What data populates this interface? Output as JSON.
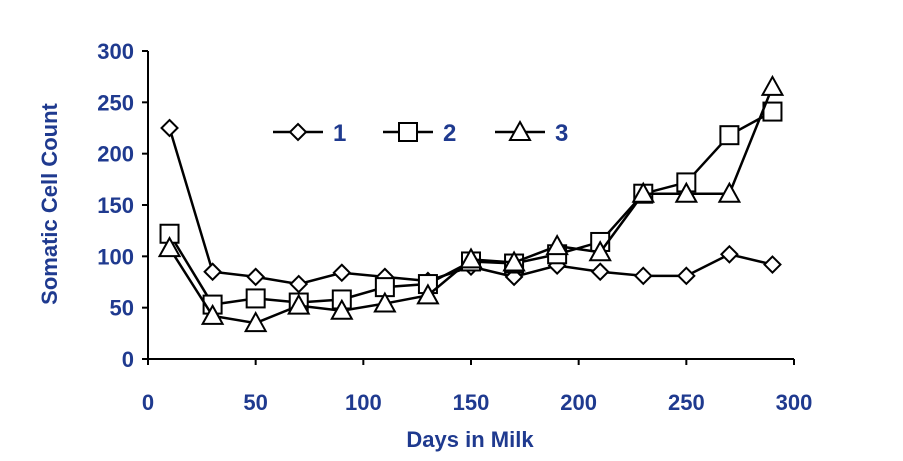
{
  "chart_data": {
    "type": "line",
    "title": "",
    "xlabel": "Days in Milk",
    "ylabel": "Somatic Cell Count",
    "xlim": [
      0,
      300
    ],
    "ylim": [
      0,
      300
    ],
    "xticks": [
      "0",
      "50",
      "100",
      "150",
      "200",
      "250",
      "300"
    ],
    "yticks": [
      "0",
      "50",
      "100",
      "150",
      "200",
      "250",
      "300"
    ],
    "grid": false,
    "legend_position": "top-center",
    "colors": {
      "axis_text": "#1f3a8f",
      "series_line": "#000000"
    },
    "series": [
      {
        "name": "1",
        "marker": "diamond",
        "x": [
          10,
          30,
          50,
          70,
          90,
          110,
          130,
          150,
          170,
          190,
          210,
          230,
          250,
          270,
          290
        ],
        "y": [
          225,
          85,
          80,
          73,
          84,
          80,
          76,
          90,
          80,
          91,
          85,
          81,
          81,
          102,
          92
        ]
      },
      {
        "name": "2",
        "marker": "square",
        "x": [
          10,
          30,
          50,
          70,
          90,
          110,
          130,
          150,
          170,
          190,
          210,
          230,
          250,
          270,
          290
        ],
        "y": [
          122,
          53,
          59,
          55,
          58,
          70,
          73,
          95,
          93,
          102,
          114,
          161,
          172,
          218,
          241
        ]
      },
      {
        "name": "3",
        "marker": "triangle",
        "x": [
          10,
          30,
          50,
          70,
          90,
          110,
          130,
          150,
          170,
          190,
          210,
          230,
          250,
          270,
          290
        ],
        "y": [
          108,
          42,
          35,
          52,
          47,
          54,
          62,
          97,
          94,
          110,
          104,
          161,
          161,
          161,
          265
        ]
      }
    ]
  }
}
